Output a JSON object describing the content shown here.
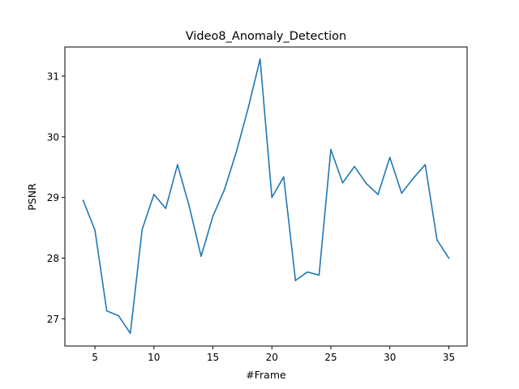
{
  "chart_data": {
    "type": "line",
    "title": "Video8_Anomaly_Detection",
    "xlabel": "#Frame",
    "ylabel": "PSNR",
    "xlim": [
      2.45,
      36.55
    ],
    "ylim": [
      26.55,
      31.48
    ],
    "xticks": [
      5,
      10,
      15,
      20,
      25,
      30,
      35
    ],
    "yticks": [
      27,
      28,
      29,
      30,
      31
    ],
    "grid": false,
    "series": [
      {
        "color": "#1f77b4",
        "x": [
          4,
          5,
          6,
          7,
          8,
          9,
          10,
          11,
          12,
          13,
          14,
          15,
          16,
          17,
          18,
          19,
          20,
          21,
          22,
          23,
          24,
          25,
          26,
          27,
          28,
          29,
          30,
          31,
          32,
          33,
          34,
          35
        ],
        "y": [
          28.95,
          28.46,
          27.13,
          27.05,
          26.76,
          28.47,
          29.05,
          28.82,
          29.54,
          28.85,
          28.03,
          28.69,
          29.14,
          29.76,
          30.48,
          31.28,
          29.0,
          29.34,
          27.63,
          27.77,
          27.72,
          29.79,
          29.24,
          29.51,
          29.23,
          29.05,
          29.66,
          29.07,
          29.32,
          29.54,
          28.3,
          28.0
        ]
      }
    ]
  }
}
